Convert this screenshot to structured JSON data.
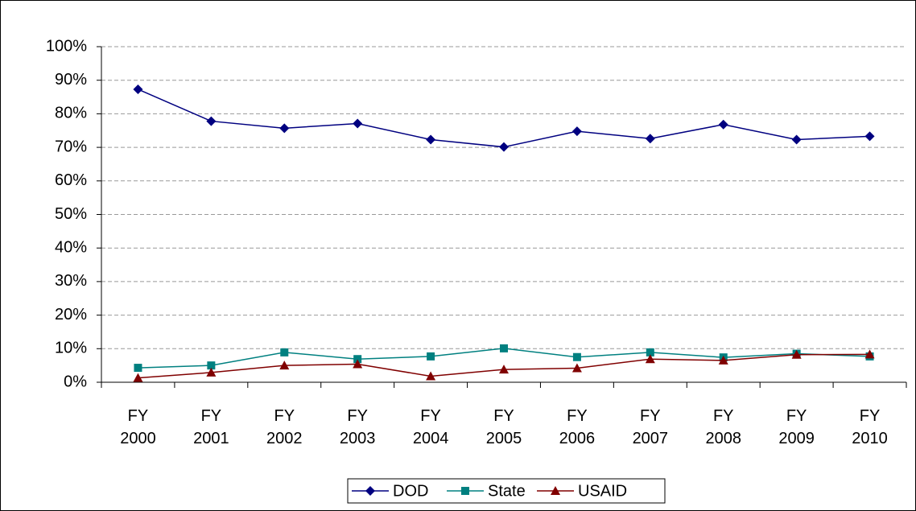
{
  "chart_data": {
    "type": "line",
    "categories": [
      "FY 2000",
      "FY 2001",
      "FY 2002",
      "FY 2003",
      "FY 2004",
      "FY 2005",
      "FY 2006",
      "FY 2007",
      "FY 2008",
      "FY 2009",
      "FY 2010"
    ],
    "series": [
      {
        "name": "DOD",
        "color": "#000080",
        "values": [
          87.3,
          77.8,
          75.7,
          77.1,
          72.3,
          70.1,
          74.8,
          72.6,
          76.8,
          72.3,
          73.3
        ]
      },
      {
        "name": "State",
        "color": "#008080",
        "values": [
          4.3,
          5.0,
          8.9,
          6.9,
          7.7,
          10.1,
          7.5,
          8.9,
          7.4,
          8.5,
          7.7
        ]
      },
      {
        "name": "USAID",
        "color": "#800000",
        "values": [
          1.3,
          2.9,
          5.0,
          5.4,
          1.8,
          3.8,
          4.2,
          6.9,
          6.5,
          8.2,
          8.3
        ]
      }
    ],
    "ylim": [
      0,
      100
    ],
    "yticks": [
      {
        "value": 0,
        "label": "0%"
      },
      {
        "value": 10,
        "label": "10%"
      },
      {
        "value": 20,
        "label": "20%"
      },
      {
        "value": 30,
        "label": "30%"
      },
      {
        "value": 40,
        "label": "40%"
      },
      {
        "value": 50,
        "label": "50%"
      },
      {
        "value": 60,
        "label": "60%"
      },
      {
        "value": 70,
        "label": "70%"
      },
      {
        "value": 80,
        "label": "80%"
      },
      {
        "value": 90,
        "label": "90%"
      },
      {
        "value": 100,
        "label": "100%"
      }
    ],
    "grid": true,
    "legend": "bottom"
  }
}
